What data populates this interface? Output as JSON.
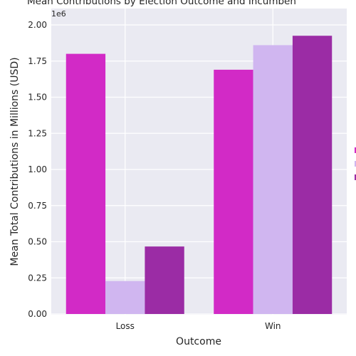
{
  "chart_data": {
    "type": "bar",
    "title": "Mean Contributions by Election Outcome and Incumben",
    "xlabel": "Outcome",
    "ylabel": "Mean Total Contributions in Millions (USD)",
    "y_offset_label": "1e6",
    "categories": [
      "Loss",
      "Win"
    ],
    "ylim": [
      0,
      2000000
    ],
    "y_ticks": [
      0,
      250000,
      500000,
      750000,
      1000000,
      1250000,
      1500000,
      1750000,
      2000000
    ],
    "y_tick_labels": [
      "0.00",
      "0.25",
      "0.50",
      "0.75",
      "1.00",
      "1.25",
      "1.50",
      "1.75",
      "2.00"
    ],
    "grid": true,
    "legend_position": "right",
    "series": [
      {
        "color": "#d22ac6",
        "values": [
          1800000,
          1690000
        ]
      },
      {
        "color": "#d0b6f0",
        "values": [
          228000,
          1860000
        ]
      },
      {
        "color": "#9b2ca5",
        "values": [
          467000,
          1925000
        ]
      }
    ]
  }
}
